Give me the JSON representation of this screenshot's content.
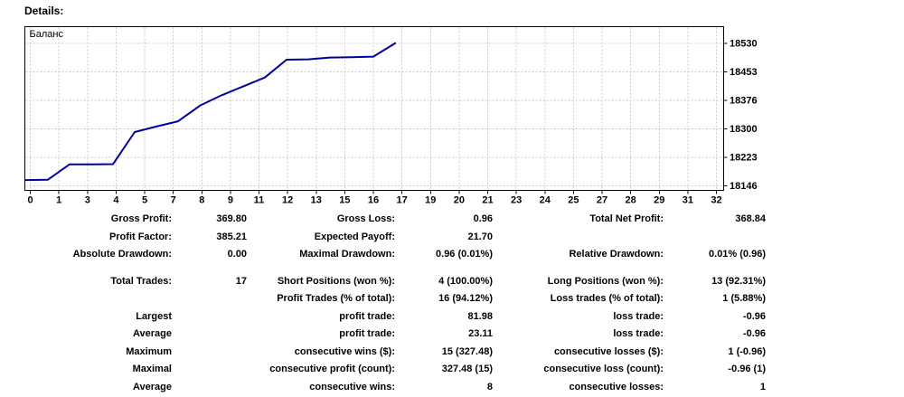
{
  "page": {
    "title": "Details:"
  },
  "chart": {
    "legend": "Баланс",
    "line_color": "#0000A0",
    "grid_color": "#c9c9c9",
    "border_color": "#000000",
    "background": "#ffffff"
  },
  "chart_data": {
    "type": "line",
    "title": "Баланс",
    "xlabel": "",
    "ylabel": "",
    "xlim": [
      0,
      32
    ],
    "ylim": [
      18146,
      18530
    ],
    "x_tick_labels": [
      "0",
      "1",
      "3",
      "4",
      "5",
      "7",
      "8",
      "9",
      "11",
      "12",
      "13",
      "15",
      "16",
      "17",
      "19",
      "20",
      "21",
      "23",
      "24",
      "25",
      "27",
      "28",
      "29",
      "31",
      "32"
    ],
    "y_ticks": [
      18530,
      18453,
      18376,
      18300,
      18223,
      18146
    ],
    "grid": "dashed",
    "legend_position": "top-left",
    "series": [
      {
        "name": "Баланс",
        "x": [
          0,
          1,
          2,
          3,
          4,
          5,
          6,
          7,
          8,
          9,
          10,
          11,
          12,
          13,
          14,
          15,
          16,
          17
        ],
        "y": [
          18161.5,
          18162.5,
          18204,
          18204,
          18204.5,
          18291,
          18306,
          18320,
          18362,
          18390,
          18414,
          18438,
          18486,
          18487,
          18492,
          18493,
          18494.5,
          18530.36
        ]
      }
    ]
  },
  "stats": {
    "groups": [
      {
        "rows": [
          {
            "cells": [
              "Gross Profit:",
              "369.80",
              "Gross Loss:",
              "0.96",
              "Total Net Profit:",
              "368.84"
            ]
          },
          {
            "cells": [
              "Profit Factor:",
              "385.21",
              "Expected Payoff:",
              "21.70",
              "",
              ""
            ]
          },
          {
            "cells": [
              "Absolute Drawdown:",
              "0.00",
              "Maximal Drawdown:",
              "0.96 (0.01%)",
              "Relative Drawdown:",
              "0.01% (0.96)"
            ]
          }
        ]
      },
      {
        "rows": [
          {
            "cells": [
              "Total Trades:",
              "17",
              "Short Positions (won %):",
              "4 (100.00%)",
              "Long Positions (won %):",
              "13 (92.31%)"
            ]
          },
          {
            "cells": [
              "",
              "",
              "Profit Trades (% of total):",
              "16 (94.12%)",
              "Loss trades (% of total):",
              "1 (5.88%)"
            ]
          },
          {
            "cells": [
              "Largest",
              "",
              "profit trade:",
              "81.98",
              "loss trade:",
              "-0.96"
            ]
          },
          {
            "cells": [
              "Average",
              "",
              "profit trade:",
              "23.11",
              "loss trade:",
              "-0.96"
            ]
          },
          {
            "cells": [
              "Maximum",
              "",
              "consecutive wins ($):",
              "15 (327.48)",
              "consecutive losses ($):",
              "1 (-0.96)"
            ]
          },
          {
            "cells": [
              "Maximal",
              "",
              "consecutive profit (count):",
              "327.48 (15)",
              "consecutive loss (count):",
              "-0.96 (1)"
            ]
          },
          {
            "cells": [
              "Average",
              "",
              "consecutive wins:",
              "8",
              "consecutive losses:",
              "1"
            ]
          }
        ]
      }
    ]
  }
}
